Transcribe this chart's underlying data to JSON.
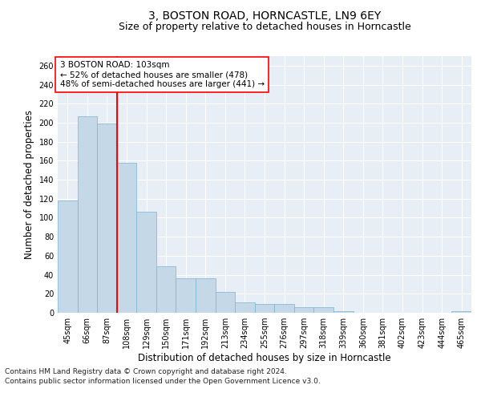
{
  "title": "3, BOSTON ROAD, HORNCASTLE, LN9 6EY",
  "subtitle": "Size of property relative to detached houses in Horncastle",
  "xlabel": "Distribution of detached houses by size in Horncastle",
  "ylabel": "Number of detached properties",
  "bar_values": [
    118,
    207,
    199,
    158,
    106,
    49,
    36,
    36,
    22,
    11,
    9,
    9,
    6,
    6,
    2,
    0,
    0,
    0,
    0,
    0,
    2
  ],
  "bar_labels": [
    "45sqm",
    "66sqm",
    "87sqm",
    "108sqm",
    "129sqm",
    "150sqm",
    "171sqm",
    "192sqm",
    "213sqm",
    "234sqm",
    "255sqm",
    "276sqm",
    "297sqm",
    "318sqm",
    "339sqm",
    "360sqm",
    "381sqm",
    "402sqm",
    "423sqm",
    "444sqm",
    "465sqm"
  ],
  "bar_color": "#c5d8e8",
  "bar_edge_color": "#7ab4d0",
  "vline_color": "red",
  "vline_x_index": 2,
  "annotation_text": "3 BOSTON ROAD: 103sqm\n← 52% of detached houses are smaller (478)\n48% of semi-detached houses are larger (441) →",
  "annotation_box_color": "white",
  "annotation_box_edge": "red",
  "ylim": [
    0,
    270
  ],
  "yticks": [
    0,
    20,
    40,
    60,
    80,
    100,
    120,
    140,
    160,
    180,
    200,
    220,
    240,
    260
  ],
  "background_color": "#e8eef5",
  "grid_color": "white",
  "footnote1": "Contains HM Land Registry data © Crown copyright and database right 2024.",
  "footnote2": "Contains public sector information licensed under the Open Government Licence v3.0.",
  "title_fontsize": 10,
  "subtitle_fontsize": 9,
  "xlabel_fontsize": 8.5,
  "ylabel_fontsize": 8.5,
  "tick_fontsize": 7,
  "annotation_fontsize": 7.5,
  "footnote_fontsize": 6.5
}
